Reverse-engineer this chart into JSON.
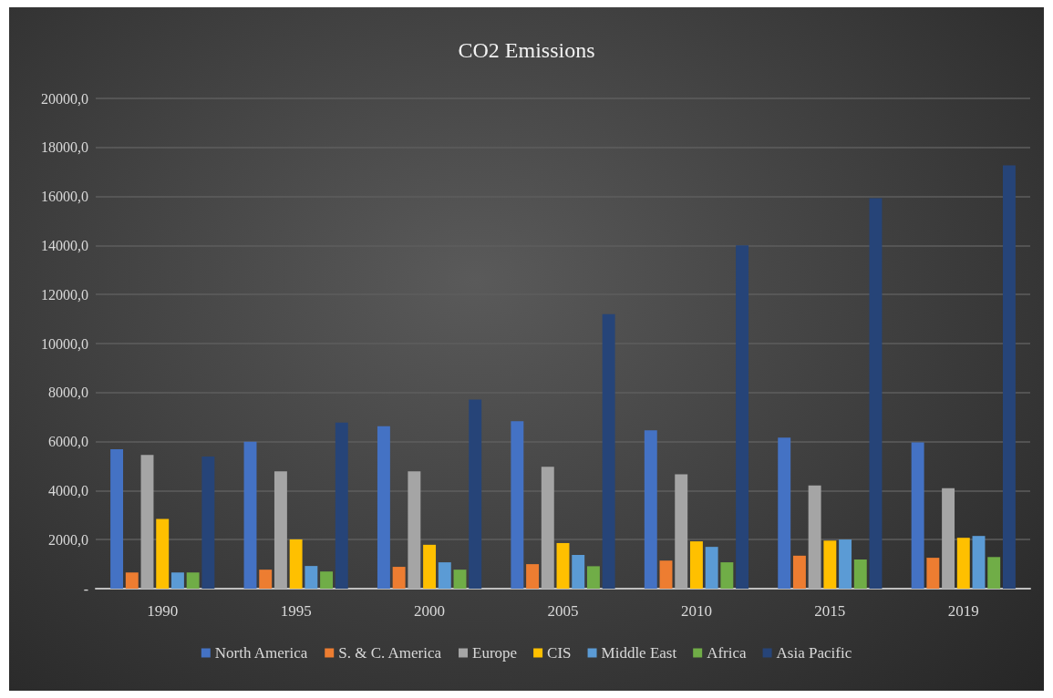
{
  "chart_data": {
    "type": "bar",
    "title": "CO2 Emissions",
    "categories": [
      "1990",
      "1995",
      "2000",
      "2005",
      "2010",
      "2015",
      "2019"
    ],
    "series": [
      {
        "name": "North America",
        "color": "#4472c4",
        "values": [
          5690,
          5990,
          6625,
          6830,
          6460,
          6160,
          5970
        ]
      },
      {
        "name": "S. & C. America",
        "color": "#ed7d31",
        "values": [
          660,
          775,
          890,
          1000,
          1145,
          1345,
          1260
        ]
      },
      {
        "name": "Europe",
        "color": "#a5a5a5",
        "values": [
          5460,
          4790,
          4790,
          4970,
          4670,
          4210,
          4095
        ]
      },
      {
        "name": "CIS",
        "color": "#ffc000",
        "values": [
          2840,
          2010,
          1790,
          1860,
          1930,
          1960,
          2075
        ]
      },
      {
        "name": "Middle East",
        "color": "#5b9bd5",
        "values": [
          660,
          925,
          1075,
          1375,
          1705,
          2005,
          2150
        ]
      },
      {
        "name": "Africa",
        "color": "#70ad47",
        "values": [
          660,
          700,
          775,
          915,
          1075,
          1190,
          1290
        ]
      },
      {
        "name": "Asia Pacific",
        "color": "#264478",
        "values": [
          5390,
          6775,
          7710,
          11200,
          14005,
          15925,
          17270
        ]
      }
    ],
    "ylim": [
      0,
      20000
    ],
    "yticks": [
      {
        "value": 0,
        "label": "-"
      },
      {
        "value": 2000,
        "label": "2000,0"
      },
      {
        "value": 4000,
        "label": "4000,0"
      },
      {
        "value": 6000,
        "label": "6000,0"
      },
      {
        "value": 8000,
        "label": "8000,0"
      },
      {
        "value": 10000,
        "label": "10000,0"
      },
      {
        "value": 12000,
        "label": "12000,0"
      },
      {
        "value": 14000,
        "label": "14000,0"
      },
      {
        "value": 16000,
        "label": "16000,0"
      },
      {
        "value": 18000,
        "label": "18000,0"
      },
      {
        "value": 20000,
        "label": "20000,0"
      }
    ],
    "grid": "y",
    "legend": "bottom"
  }
}
